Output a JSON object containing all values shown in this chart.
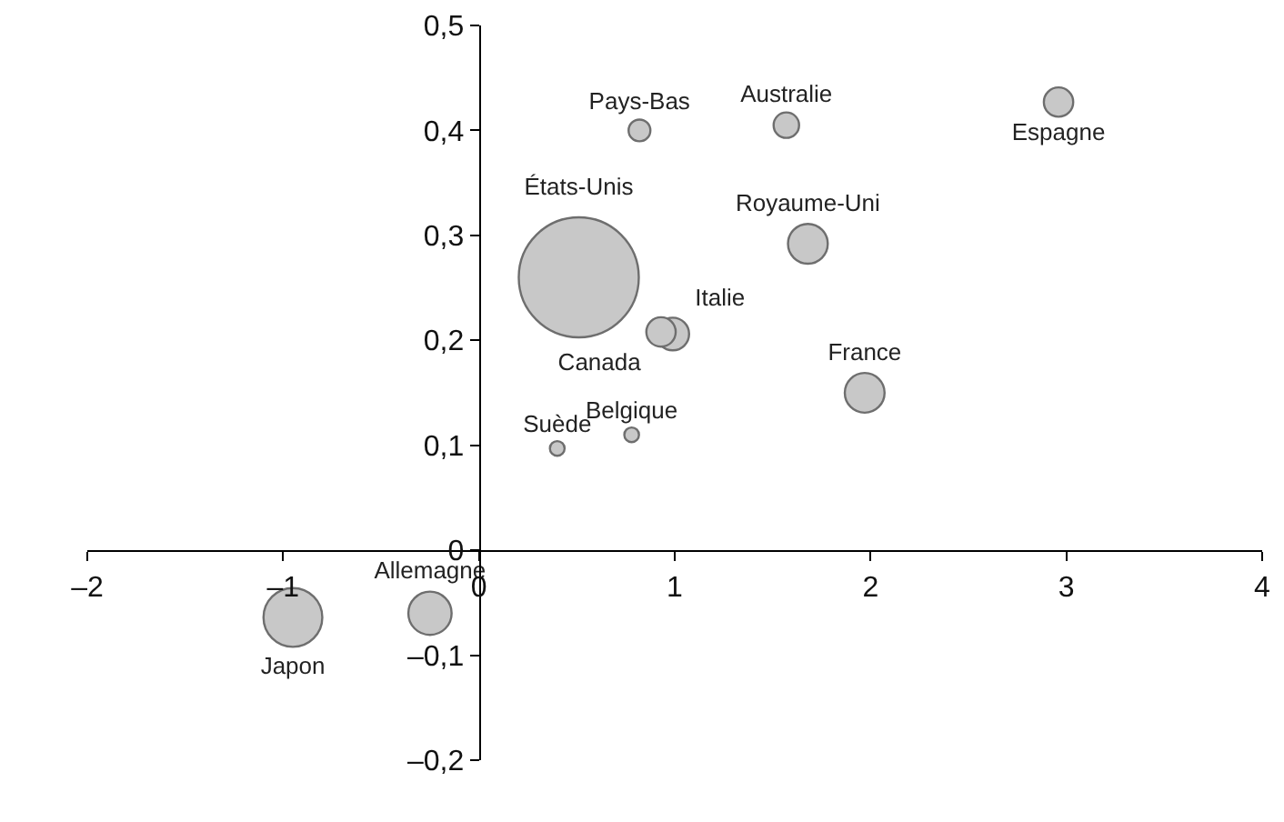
{
  "chart_data": {
    "type": "bubble",
    "xlim": [
      -2,
      4
    ],
    "ylim": [
      -0.2,
      0.5
    ],
    "xticks": [
      {
        "value": -2,
        "label": "–2"
      },
      {
        "value": -1,
        "label": "–1"
      },
      0,
      1,
      2,
      3,
      4
    ],
    "yticks": [
      {
        "value": -0.2,
        "label": "–0,2"
      },
      {
        "value": -0.1,
        "label": "–0,1"
      },
      0,
      {
        "value": 0.1,
        "label": "0,1"
      },
      {
        "value": 0.2,
        "label": "0,2"
      },
      {
        "value": 0.3,
        "label": "0,3"
      },
      {
        "value": 0.4,
        "label": "0,4"
      },
      {
        "value": 0.5,
        "label": "0,5"
      }
    ],
    "grid": false,
    "legend": false,
    "series": [
      {
        "name": "Pays-Bas",
        "color": "#c8c8c8",
        "x": [
          0.82
        ],
        "values": [
          0.4
        ],
        "sizes": [
          0.033
        ]
      },
      {
        "name": "Australie",
        "color": "#c8c8c8",
        "x": [
          1.57
        ],
        "values": [
          0.405
        ],
        "sizes": [
          0.045
        ]
      },
      {
        "name": "Espagne",
        "color": "#c8c8c8",
        "x": [
          2.96
        ],
        "values": [
          0.427
        ],
        "sizes": [
          0.06
        ]
      },
      {
        "name": "États-Unis",
        "color": "#c8c8c8",
        "x": [
          0.51
        ],
        "values": [
          0.26
        ],
        "sizes": [
          1
        ]
      },
      {
        "name": "Royaume-Uni",
        "color": "#c8c8c8",
        "x": [
          1.68
        ],
        "values": [
          0.292
        ],
        "sizes": [
          0.11
        ]
      },
      {
        "name": "Italie",
        "color": "#c8c8c8",
        "x": [
          0.99
        ],
        "values": [
          0.206
        ],
        "sizes": [
          0.074
        ]
      },
      {
        "name": "Canada",
        "color": "#c8c8c8",
        "x": [
          0.93
        ],
        "values": [
          0.208
        ],
        "sizes": [
          0.06
        ]
      },
      {
        "name": "France",
        "color": "#c8c8c8",
        "x": [
          1.97
        ],
        "values": [
          0.15
        ],
        "sizes": [
          0.11
        ]
      },
      {
        "name": "Belgique",
        "color": "#c8c8c8",
        "x": [
          0.78
        ],
        "values": [
          0.11
        ],
        "sizes": [
          0.015
        ]
      },
      {
        "name": "Suède",
        "color": "#c8c8c8",
        "x": [
          0.4
        ],
        "values": [
          0.097
        ],
        "sizes": [
          0.015
        ]
      },
      {
        "name": "Japon",
        "color": "#c8c8c8",
        "x": [
          -0.95
        ],
        "values": [
          -0.064
        ],
        "sizes": [
          0.24
        ]
      },
      {
        "name": "Allemagne",
        "color": "#c8c8c8",
        "x": [
          -0.25
        ],
        "values": [
          -0.06
        ],
        "sizes": [
          0.13
        ]
      }
    ]
  }
}
